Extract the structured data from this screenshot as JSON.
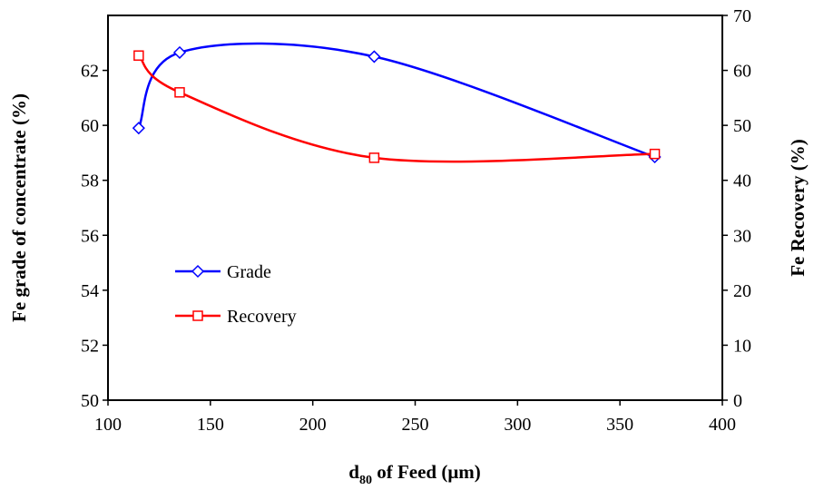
{
  "chart_data": {
    "type": "line",
    "xlabel": {
      "base": "d",
      "subscript": "80",
      "rest": " of Feed (μm)"
    },
    "ylabel_left": "Fe grade of concentrate (%)",
    "ylabel_right": "Fe Recovery (%)",
    "xlim": [
      100,
      400
    ],
    "ylim_left": [
      50,
      64
    ],
    "ylim_right": [
      0,
      70
    ],
    "x_ticks": [
      100,
      150,
      200,
      250,
      300,
      350,
      400
    ],
    "y_left_ticks": [
      50,
      52,
      54,
      56,
      58,
      60,
      62
    ],
    "y_right_ticks": [
      0,
      10,
      20,
      30,
      40,
      50,
      60,
      70
    ],
    "grid": false,
    "legend_position": "center-left",
    "series": [
      {
        "name": "Grade",
        "axis": "left",
        "marker": "diamond",
        "color": "#0000ff",
        "x": [
          115,
          135,
          230,
          367
        ],
        "y": [
          59.9,
          62.65,
          62.5,
          58.85
        ]
      },
      {
        "name": "Recovery",
        "axis": "right",
        "marker": "square",
        "color": "#ff0000",
        "x": [
          115,
          135,
          230,
          367
        ],
        "y": [
          62.7,
          56.0,
          44.1,
          44.8
        ]
      }
    ]
  }
}
